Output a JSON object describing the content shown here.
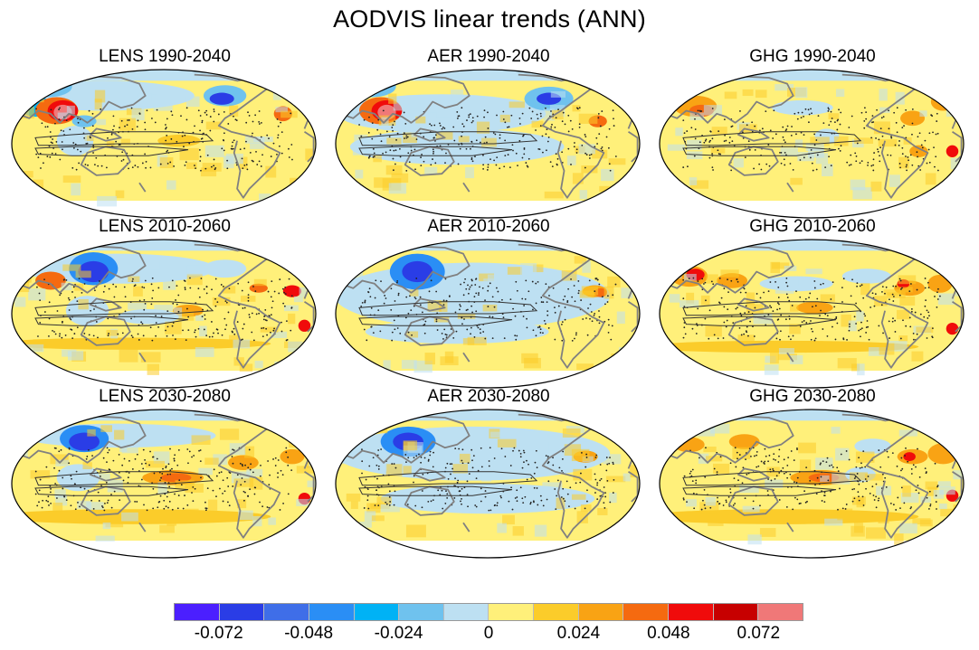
{
  "title": "AODVIS linear trends (ANN)",
  "chart_data": {
    "type": "heatmap",
    "title": "AODVIS linear trends (ANN)",
    "projection": "Robinson (Pacific-centred), global",
    "panels": [
      {
        "name": "LENS 1990-2040",
        "pattern": "strong decrease over Europe / North Atlantic, large increase over India and southern Asia, weak increases elsewhere in the tropics and southern hemisphere"
      },
      {
        "name": "AER 1990-2040",
        "pattern": "strong decrease over Europe / North Atlantic, large increase over India and southern Asia"
      },
      {
        "name": "GHG 1990-2040",
        "pattern": "small increases nearly everywhere, local maxima over South Asia, Central America and Africa"
      },
      {
        "name": "LENS 2010-2060",
        "pattern": "large decrease over South and East Asia, increases over Africa and tropical Atlantic"
      },
      {
        "name": "AER 2010-2060",
        "pattern": "large decrease over South and East Asia, weak decrease over much of the Pacific"
      },
      {
        "name": "GHG 2010-2060",
        "pattern": "widespread weak increases, maxima over South Asia, Central America and West Africa"
      },
      {
        "name": "LENS 2030-2080",
        "pattern": "decrease over East Asia, increase over the central tropical Pacific and Africa"
      },
      {
        "name": "AER 2030-2080",
        "pattern": "decrease over East Asia, weak changes elsewhere"
      },
      {
        "name": "GHG 2030-2080",
        "pattern": "increase over the central tropical Pacific, South Asia and Africa"
      }
    ],
    "colorbar": {
      "colors": [
        "#4b1fff",
        "#2a3de6",
        "#3f6ee8",
        "#2a8ef5",
        "#00b2f5",
        "#6fc2ee",
        "#bde0f2",
        "#fff07a",
        "#fbcc2a",
        "#f9a314",
        "#f56a10",
        "#f00b0b",
        "#c70000",
        "#f07878"
      ],
      "tick_labels": [
        "-0.072",
        "-0.048",
        "-0.024",
        "0",
        "0.024",
        "0.048",
        "0.072"
      ],
      "tick_values": [
        -0.072,
        -0.048,
        -0.024,
        0,
        0.024,
        0.048,
        0.072
      ]
    }
  }
}
